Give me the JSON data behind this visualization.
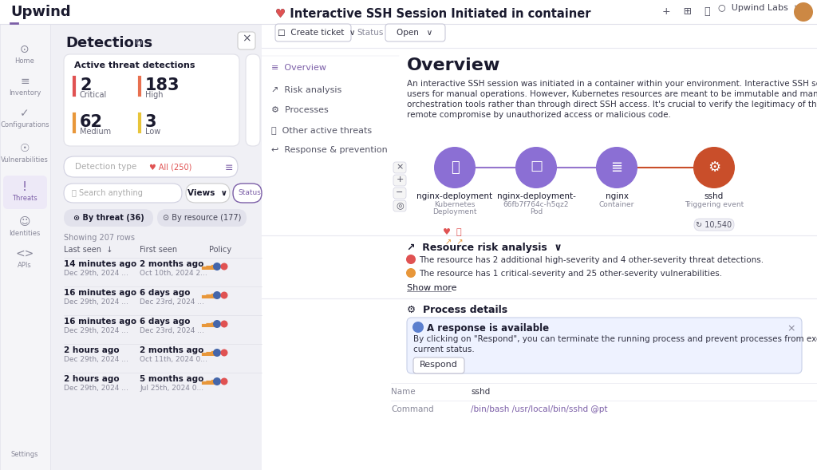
{
  "bg_color": "#f0f0f5",
  "white": "#ffffff",
  "purple": "#7b5ea7",
  "light_purple": "#ede9f7",
  "red": "#e05252",
  "orange": "#e8973a",
  "yellow": "#e8c53a",
  "dark_text": "#1a1a2e",
  "gray_text": "#888899",
  "light_gray": "#e8e8ef",
  "border_color": "#d8d8e8",
  "logo_text": "Upwind",
  "nav_items": [
    "Home",
    "Inventory",
    "Configurations",
    "Vulnerabilities",
    "Threats",
    "Identities",
    "APIs"
  ],
  "active_nav": "Threats",
  "panel_title": "Detections",
  "threat_stats_title": "Active threat detections",
  "stats": [
    {
      "value": "2",
      "label": "Critical",
      "color": "#e05252"
    },
    {
      "value": "183",
      "label": "High",
      "color": "#e87050"
    },
    {
      "value": "62",
      "label": "Medium",
      "color": "#e8973a"
    },
    {
      "value": "3",
      "label": "Low",
      "color": "#e8c53a"
    }
  ],
  "detection_type_label": "Detection type",
  "all_count": "All (250)",
  "search_placeholder": "Search anything",
  "tab_threat": "By threat (36)",
  "tab_resource": "By resource (177)",
  "showing_rows": "Showing 207 rows",
  "col_last_seen": "Last seen",
  "col_first_seen": "First seen",
  "col_policy": "Policy",
  "rows": [
    {
      "last": "14 minutes ago",
      "last2": "Dec 29th, 2024 ...",
      "first": "2 months ago",
      "first2": "Oct 10th, 2024 2..."
    },
    {
      "last": "16 minutes ago",
      "last2": "Dec 29th, 2024 ...",
      "first": "6 days ago",
      "first2": "Dec 23rd, 2024 ..."
    },
    {
      "last": "16 minutes ago",
      "last2": "Dec 29th, 2024 ...",
      "first": "6 days ago",
      "first2": "Dec 23rd, 2024 ..."
    },
    {
      "last": "2 hours ago",
      "last2": "Dec 29th, 2024 ...",
      "first": "2 months ago",
      "first2": "Oct 11th, 2024 0..."
    },
    {
      "last": "2 hours ago",
      "last2": "Dec 29th, 2024 ...",
      "first": "5 months ago",
      "first2": "Jul 25th, 2024 0..."
    }
  ],
  "main_title": "Interactive SSH Session Initiated in container",
  "status": "Open",
  "nav_links": [
    "Overview",
    "Risk analysis",
    "Processes",
    "Other active threats",
    "Response & prevention"
  ],
  "active_link": "Overview",
  "section_title": "Overview",
  "overview_lines": [
    "An interactive SSH session was initiated in a container within your environment. Interactive SSH sessions are typically used by human",
    "users for manual operations. However, Kubernetes resources are meant to be immutable and managed by automation platforms or",
    "orchestration tools rather than through direct SSH access. It's crucial to verify the legitimacy of this connection to mitigate the risk of",
    "remote compromise by unauthorized access or malicious code."
  ],
  "flow_nodes": [
    {
      "label": "nginx-deployment",
      "sub1": "Kubernetes",
      "sub2": "Deployment",
      "type": "deploy",
      "color": "#8b6fd4",
      "has_icons": true
    },
    {
      "label": "nginx-deployment-",
      "sub1": "66fb7f764c-h5qz2",
      "sub2": "Pod",
      "type": "pod",
      "color": "#8b6fd4",
      "has_icons": false
    },
    {
      "label": "nginx",
      "sub1": "Container",
      "sub2": "",
      "type": "container",
      "color": "#8b6fd4",
      "has_icons": false
    },
    {
      "label": "sshd",
      "sub1": "Triggering event",
      "sub2": "",
      "type": "trigger",
      "color": "#c94e2a",
      "has_icons": false,
      "count": "10,540"
    }
  ],
  "risk_title": "Resource risk analysis",
  "risk_line1": "The resource has 2 additional high-severity and 4 other-severity threat detections.",
  "risk_line2": "The resource has 1 critical-severity and 25 other-severity vulnerabilities.",
  "show_more": "Show more",
  "process_title": "Process details",
  "process_alert": "A response is available",
  "process_alert_line1": "By clicking on \"Respond\", you can terminate the running process and prevent processes from executing based on their",
  "process_alert_line2": "current status.",
  "respond_btn": "Respond",
  "name_label": "Name",
  "name_value": "sshd",
  "cmd_label": "Command",
  "cmd_value": "/bin/bash /usr/local/bin/sshd @pt"
}
